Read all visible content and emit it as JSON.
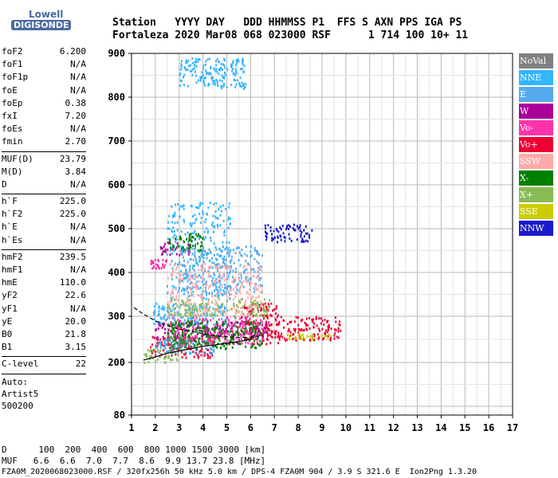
{
  "logo": {
    "line1": "Lowell",
    "line2": "DIGISONDE"
  },
  "header": {
    "line1": "Station   YYYY DAY   DDD HHMMSS P1  FFS S AXN PPS IGA PS",
    "line2": "Fortaleza 2020 Mar08 068 023000 RSF      1 714 100 10+ 11"
  },
  "params_groups": [
    [
      {
        "name": "foF2",
        "value": "6.200"
      },
      {
        "name": "foF1",
        "value": "N/A"
      },
      {
        "name": "foF1p",
        "value": "N/A"
      },
      {
        "name": "foE",
        "value": "N/A"
      },
      {
        "name": "foEp",
        "value": "0.38"
      },
      {
        "name": "fxI",
        "value": "7.20"
      },
      {
        "name": "foEs",
        "value": "N/A"
      },
      {
        "name": "fmin",
        "value": "2.70"
      }
    ],
    [
      {
        "name": "MUF(D)",
        "value": "23.79"
      },
      {
        "name": "M(D)",
        "value": "3.84"
      },
      {
        "name": "D",
        "value": "N/A"
      }
    ],
    [
      {
        "name": "h`F",
        "value": "225.0"
      },
      {
        "name": "h`F2",
        "value": "225.0"
      },
      {
        "name": "h`E",
        "value": "N/A"
      },
      {
        "name": "h`Es",
        "value": "N/A"
      }
    ],
    [
      {
        "name": "hmF2",
        "value": "239.5"
      },
      {
        "name": "hmF1",
        "value": "N/A"
      },
      {
        "name": "hmE",
        "value": "110.0"
      },
      {
        "name": "yF2",
        "value": "22.6"
      },
      {
        "name": "yF1",
        "value": "N/A"
      },
      {
        "name": "yE",
        "value": "20.0"
      },
      {
        "name": "B0",
        "value": "21.8"
      },
      {
        "name": "B1",
        "value": "3.15"
      }
    ],
    [
      {
        "name": "C-level",
        "value": "22"
      }
    ]
  ],
  "auto": {
    "line1": "Auto:",
    "line2": "Artist5",
    "line3": "500200"
  },
  "legend": [
    {
      "label": "NoVal",
      "color": "#808080"
    },
    {
      "label": "NNE",
      "color": "#33b5ff"
    },
    {
      "label": "E",
      "color": "#55aaee"
    },
    {
      "label": "W",
      "color": "#aa0099"
    },
    {
      "label": "Vo-",
      "color": "#ff33aa"
    },
    {
      "label": "Vo+",
      "color": "#ee0033"
    },
    {
      "label": "SSW",
      "color": "#ffaaaa"
    },
    {
      "label": "X-",
      "color": "#008000"
    },
    {
      "label": "X+",
      "color": "#88bb55"
    },
    {
      "label": "SSE",
      "color": "#cccc00"
    },
    {
      "label": "NNW",
      "color": "#1a1acc"
    }
  ],
  "footer": {
    "line1": "D      100  200  400  600  800 1000 1500 3000 [km]",
    "line2": "MUF   6.6  6.6  7.0  7.7  8.6  9.9 13.7 23.8 [MHz]",
    "line3": "FZA0M_2020068023000.RSF / 320fx256h 50 kHz 5.0 km / DPS-4 FZA0M 904 / 3.9 S 321.6 E  Ion2Png 1.3.20"
  },
  "chart_data": {
    "type": "scatter",
    "xlim": [
      1,
      17
    ],
    "ylim": [
      80,
      900
    ],
    "x_ticks": [
      1,
      2,
      3,
      4,
      5,
      6,
      7,
      8,
      9,
      10,
      11,
      12,
      13,
      14,
      15,
      16,
      17
    ],
    "y_ticks": [
      80,
      200,
      300,
      400,
      500,
      600,
      700,
      800,
      900
    ],
    "grid": true,
    "series": [
      {
        "name": "Vo+",
        "color": "#ee0033",
        "clusters": [
          {
            "x": [
              5.6,
              7.2
            ],
            "y": [
              240,
              330
            ]
          },
          {
            "x": [
              7.0,
              9.8
            ],
            "y": [
              248,
              300
            ]
          },
          {
            "x": [
              1.8,
              4.5
            ],
            "y": [
              210,
              260
            ]
          }
        ]
      },
      {
        "name": "W",
        "color": "#aa0099",
        "clusters": [
          {
            "x": [
              2.0,
              6.8
            ],
            "y": [
              250,
              290
            ]
          },
          {
            "x": [
              2.2,
              3.5
            ],
            "y": [
              440,
              470
            ]
          }
        ]
      },
      {
        "name": "Vo-",
        "color": "#ff33aa",
        "clusters": [
          {
            "x": [
              2.5,
              6.5
            ],
            "y": [
              240,
              300
            ]
          },
          {
            "x": [
              1.8,
              2.5
            ],
            "y": [
              410,
              430
            ]
          }
        ]
      },
      {
        "name": "NNE",
        "color": "#33b5ff",
        "clusters": [
          {
            "x": [
              1.9,
              5.0
            ],
            "y": [
              280,
              330
            ]
          },
          {
            "x": [
              2.5,
              5.2
            ],
            "y": [
              340,
              560
            ]
          },
          {
            "x": [
              3.0,
              5.8
            ],
            "y": [
              820,
              890
            ]
          },
          {
            "x": [
              2.0,
              4.5
            ],
            "y": [
              220,
              250
            ]
          }
        ]
      },
      {
        "name": "E",
        "color": "#55aaee",
        "clusters": [
          {
            "x": [
              3.0,
              6.5
            ],
            "y": [
              350,
              460
            ]
          }
        ]
      },
      {
        "name": "X-",
        "color": "#008000",
        "clusters": [
          {
            "x": [
              2.5,
              6.5
            ],
            "y": [
              230,
              290
            ]
          },
          {
            "x": [
              2.6,
              4.0
            ],
            "y": [
              450,
              490
            ]
          }
        ]
      },
      {
        "name": "X+",
        "color": "#88bb55",
        "clusters": [
          {
            "x": [
              2.5,
              6.8
            ],
            "y": [
              300,
              340
            ]
          },
          {
            "x": [
              1.5,
              3.0
            ],
            "y": [
              200,
              230
            ]
          }
        ]
      },
      {
        "name": "SSE",
        "color": "#cccc00",
        "clusters": [
          {
            "x": [
              7.5,
              9.5
            ],
            "y": [
              250,
              262
            ]
          }
        ]
      },
      {
        "name": "SSW",
        "color": "#ffaaaa",
        "clusters": [
          {
            "x": [
              2.5,
              6.5
            ],
            "y": [
              300,
              420
            ]
          }
        ]
      },
      {
        "name": "NoVal",
        "color": "#808080",
        "clusters": [
          {
            "x": [
              2.5,
              3.5
            ],
            "y": [
              230,
              260
            ]
          }
        ]
      },
      {
        "name": "NNW",
        "color": "#1a1acc",
        "clusters": [
          {
            "x": [
              6.6,
              8.6
            ],
            "y": [
              470,
              510
            ]
          }
        ]
      }
    ],
    "profile_curve": {
      "x": [
        1.5,
        2,
        2.5,
        3,
        3.5,
        4,
        4.5,
        5,
        5.5,
        6,
        6.2
      ],
      "y": [
        205,
        212,
        220,
        225,
        230,
        235,
        238,
        242,
        245,
        250,
        262
      ]
    },
    "dashed_curve": {
      "x": [
        1.1,
        1.5,
        2,
        2.5,
        3,
        3.5,
        4,
        4.5,
        5,
        5.5,
        6,
        6.5
      ],
      "y": [
        320,
        305,
        290,
        280,
        272,
        268,
        262,
        258,
        256,
        254,
        255,
        258
      ]
    }
  }
}
